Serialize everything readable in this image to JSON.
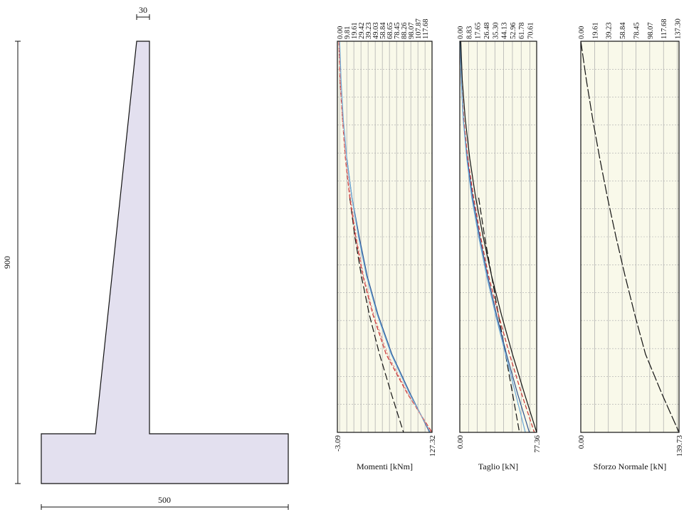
{
  "wall": {
    "dim_top": "30",
    "dim_height": "900",
    "dim_base": "500",
    "fill_color": "#e3e0ef"
  },
  "chart_data": [
    {
      "type": "line",
      "xlabel": "Momenti [kNm]",
      "xlim": [
        -3.09,
        127.32
      ],
      "axis_min_label": "-3.09",
      "axis_max_label": "127.32",
      "top_ticks": [
        "0.00",
        "9.81",
        "19.61",
        "29.42",
        "39.23",
        "49.03",
        "58.84",
        "68.65",
        "78.45",
        "88.26",
        "98.07",
        "107.87",
        "117.68"
      ],
      "background": "#f9f9ea",
      "grid": true,
      "series": [
        {
          "color": "#111111",
          "dash": "10,4",
          "y_start": 0.37,
          "y": [
            0,
            0.1,
            0.2,
            0.3,
            0.4,
            0.5,
            0.6,
            0.7,
            0.8,
            0.9,
            1.0
          ],
          "x": [
            -3.09,
            -0.5,
            3.0,
            8.0,
            14.0,
            21.0,
            30.0,
            41.0,
            55.0,
            71.0,
            88.0
          ]
        },
        {
          "color": "#2c4f8c",
          "dash": "",
          "y_start": 0.29,
          "y": [
            0,
            0.1,
            0.2,
            0.3,
            0.4,
            0.5,
            0.6,
            0.7,
            0.8,
            0.9,
            1.0
          ],
          "x": [
            -0.5,
            1.5,
            5.0,
            10.0,
            17.0,
            27.0,
            38.0,
            53.0,
            72.0,
            97.0,
            124.0
          ]
        },
        {
          "color": "#cc3333",
          "dash": "6,3",
          "y_start": 0.0,
          "y": [
            0,
            0.1,
            0.2,
            0.3,
            0.4,
            0.5,
            0.6,
            0.7,
            0.8,
            0.9,
            1.0
          ],
          "x": [
            -1.0,
            0.5,
            4.0,
            8.0,
            14.0,
            22.0,
            32.0,
            46.0,
            64.0,
            93.0,
            127.32
          ]
        },
        {
          "color": "#6aa8d8",
          "dash": "",
          "y_start": 0.0,
          "y": [
            0,
            0.1,
            0.2,
            0.3,
            0.4,
            0.5,
            0.6,
            0.7,
            0.8,
            0.9,
            1.0
          ],
          "x": [
            0.0,
            2.0,
            5.0,
            10.0,
            17.0,
            26.0,
            37.0,
            52.0,
            71.0,
            96.0,
            125.0
          ]
        },
        {
          "color": "#d98c8c",
          "dash": "3,2",
          "y_start": 0.0,
          "y": [
            0,
            0.1,
            0.2,
            0.3,
            0.4,
            0.5,
            0.6,
            0.7,
            0.8,
            0.9,
            1.0
          ],
          "x": [
            -0.8,
            0.8,
            4.0,
            8.5,
            15.0,
            23.0,
            33.0,
            47.0,
            66.0,
            94.0,
            126.0
          ]
        }
      ]
    },
    {
      "type": "line",
      "xlabel": "Taglio [kN]",
      "xlim": [
        0,
        77.36
      ],
      "axis_min_label": "0.00",
      "axis_max_label": "77.36",
      "top_ticks": [
        "0.00",
        "8.83",
        "17.65",
        "26.48",
        "35.30",
        "44.13",
        "52.96",
        "61.78",
        "70.61"
      ],
      "background": "#f9f9ea",
      "grid": true,
      "series": [
        {
          "color": "#111111",
          "dash": "10,4",
          "y_start": 0.37,
          "y": [
            0,
            0.1,
            0.2,
            0.3,
            0.4,
            0.5,
            0.6,
            0.7,
            0.8,
            0.9,
            1.0
          ],
          "x": [
            0,
            3.0,
            8.0,
            13.0,
            19.0,
            25.0,
            32.0,
            39.0,
            46.0,
            53.0,
            60.0
          ]
        },
        {
          "color": "#2c4f8c",
          "dash": "",
          "y_start": 0.0,
          "y": [
            0,
            0.1,
            0.2,
            0.3,
            0.4,
            0.5,
            0.6,
            0.7,
            0.8,
            0.9,
            1.0
          ],
          "x": [
            0.5,
            1.5,
            3.5,
            7.5,
            13.0,
            20.0,
            28.0,
            37.0,
            47.0,
            58.0,
            70.0
          ]
        },
        {
          "color": "#cc3333",
          "dash": "6,3",
          "y_start": 0.0,
          "y": [
            0,
            0.1,
            0.2,
            0.3,
            0.4,
            0.5,
            0.6,
            0.7,
            0.8,
            0.9,
            1.0
          ],
          "x": [
            0.5,
            1.5,
            4.0,
            8.0,
            14.0,
            21.0,
            29.0,
            39.0,
            50.0,
            62.0,
            75.0
          ]
        },
        {
          "color": "#6aa8d8",
          "dash": "",
          "y_start": 0.0,
          "y": [
            0,
            0.1,
            0.2,
            0.3,
            0.4,
            0.5,
            0.6,
            0.7,
            0.8,
            0.9,
            1.0
          ],
          "x": [
            0.5,
            1.5,
            3.5,
            7.0,
            12.0,
            19.0,
            27.0,
            36.0,
            46.0,
            56.0,
            66.0
          ]
        },
        {
          "color": "#111111",
          "dash": "",
          "y_start": 0.0,
          "y": [
            0,
            0.1,
            0.2,
            0.3,
            0.4,
            0.5,
            0.6,
            0.7,
            0.8,
            0.9,
            1.0
          ],
          "x": [
            1.0,
            2.5,
            5.5,
            10.0,
            16.0,
            23.5,
            32.0,
            42.0,
            53.0,
            65.0,
            77.36
          ]
        }
      ]
    },
    {
      "type": "line",
      "xlabel": "Sforzo Normale [kN]",
      "xlim": [
        0,
        139.73
      ],
      "axis_min_label": "0.00",
      "axis_max_label": "139.73",
      "top_ticks": [
        "0.00",
        "19.61",
        "39.23",
        "58.84",
        "78.45",
        "98.07",
        "117.68",
        "137.30"
      ],
      "background": "#f9f9ea",
      "grid": true,
      "series": [
        {
          "color": "#111111",
          "dash": "14,3",
          "y_start": 0.0,
          "y": [
            0,
            0.1,
            0.2,
            0.3,
            0.4,
            0.5,
            0.6,
            0.7,
            0.8,
            0.9,
            1.0
          ],
          "x": [
            0,
            8.0,
            17.0,
            27.0,
            38.0,
            50.0,
            63.0,
            77.0,
            92.0,
            115.0,
            139.73
          ]
        }
      ]
    }
  ]
}
